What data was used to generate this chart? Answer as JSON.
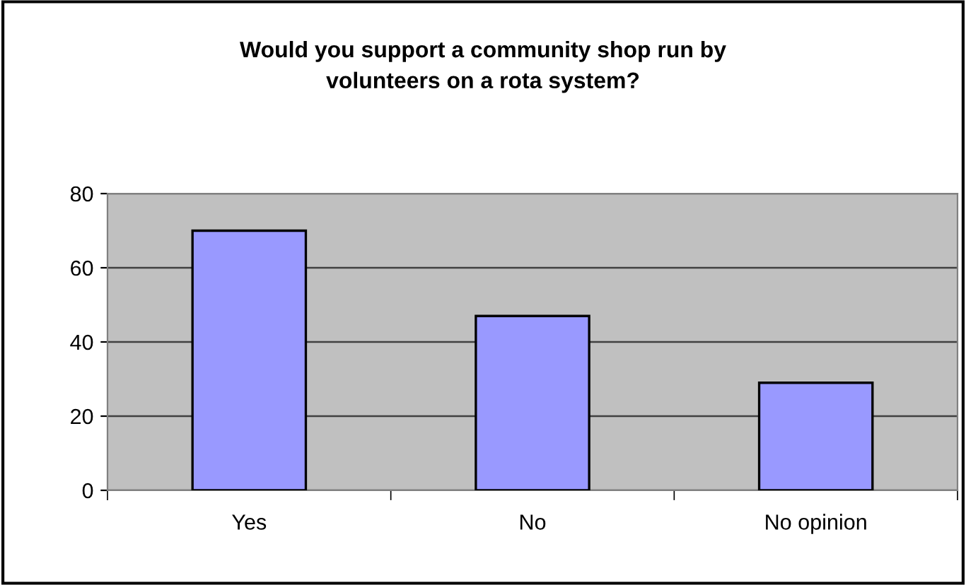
{
  "chart_data": {
    "type": "bar",
    "title": "Would you support a community shop run by\nvolunteers on a rota system?",
    "categories": [
      "Yes",
      "No",
      "No opinion"
    ],
    "values": [
      70,
      47,
      29
    ],
    "color": "#9999ff",
    "ylim": [
      0,
      80
    ],
    "yticks": [
      0,
      20,
      40,
      60,
      80
    ],
    "grid": "y",
    "legend": false
  }
}
